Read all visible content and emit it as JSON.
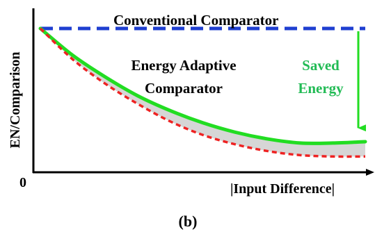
{
  "chart_data": {
    "type": "line",
    "title": "",
    "ylabel": "EN/Comparison",
    "xlabel": "|Input Difference|",
    "origin_label": "0",
    "panel_label": "(b)",
    "xlim": [
      0,
      1
    ],
    "ylim": [
      0,
      1
    ],
    "grid": false,
    "series": [
      {
        "name": "Conventional Comparator",
        "style": "dashed",
        "color": "#1f3fd1",
        "x": [
          0,
          1
        ],
        "y": [
          1,
          1
        ]
      },
      {
        "name": "Energy Adaptive Comparator",
        "style": "solid",
        "color": "#22dd22",
        "x": [
          0,
          0.1,
          0.2,
          0.3,
          0.4,
          0.5,
          0.6,
          0.7,
          0.8,
          0.9,
          1.0
        ],
        "y": [
          1.0,
          0.8,
          0.64,
          0.5,
          0.39,
          0.3,
          0.23,
          0.18,
          0.15,
          0.15,
          0.16
        ]
      },
      {
        "name": "",
        "style": "dotted",
        "color": "#ee2222",
        "x": [
          0,
          0.1,
          0.2,
          0.3,
          0.4,
          0.5,
          0.6,
          0.7,
          0.8,
          0.9,
          1.0
        ],
        "y": [
          1.0,
          0.77,
          0.59,
          0.44,
          0.31,
          0.21,
          0.14,
          0.09,
          0.06,
          0.05,
          0.05
        ]
      }
    ],
    "annotations": [
      {
        "text": "Saved Energy",
        "color": "#22bb55",
        "arrow_from": [
          1.0,
          1.0
        ],
        "arrow_to": [
          1.0,
          0.2
        ]
      }
    ]
  }
}
